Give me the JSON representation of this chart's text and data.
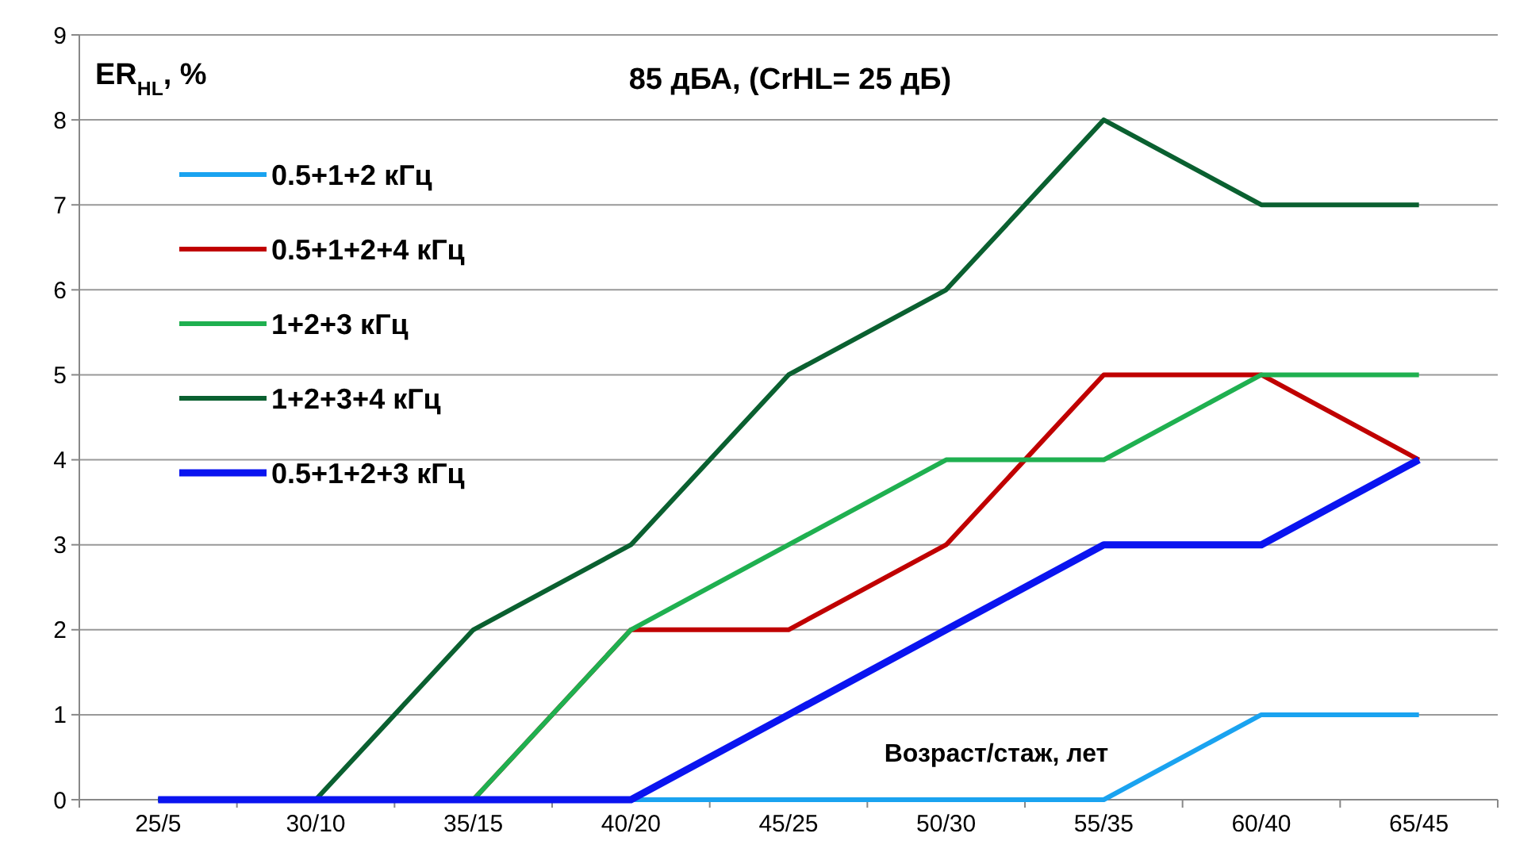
{
  "chart_data": {
    "type": "line",
    "title": "85 дБА,  (CrHL= 25 дБ)",
    "ylabel": "ER$_{HL}$, %",
    "xlabel": "Возраст/стаж, лет",
    "categories": [
      "25/5",
      "30/10",
      "35/15",
      "40/20",
      "45/25",
      "50/30",
      "55/35",
      "60/40",
      "65/45"
    ],
    "series": [
      {
        "name": "0.5+1+2 кГц",
        "color": "#1aa3f0",
        "values": [
          null,
          null,
          0,
          0,
          0,
          0,
          0,
          1,
          1
        ]
      },
      {
        "name": "0.5+1+2+4 кГц",
        "color": "#c00000",
        "values": [
          null,
          null,
          0,
          2,
          2,
          3,
          5,
          5,
          4
        ]
      },
      {
        "name": "1+2+3 кГц",
        "color": "#1fb050",
        "values": [
          0,
          0,
          0,
          2,
          3,
          4,
          4,
          5,
          5
        ]
      },
      {
        "name": "1+2+3+4 кГц",
        "color": "#0a6030",
        "values": [
          0,
          0,
          2,
          3,
          5,
          6,
          8,
          7,
          7
        ]
      },
      {
        "name": "0.5+1+2+3 кГц",
        "color": "#0a14f0",
        "values": [
          0,
          0,
          0,
          0,
          1,
          2,
          3,
          3,
          4
        ]
      }
    ],
    "ylim": [
      0,
      9
    ],
    "yticks": [
      0,
      1,
      2,
      3,
      4,
      5,
      6,
      7,
      8,
      9
    ],
    "grid": "y",
    "legend": "top left",
    "marker": "none",
    "line_style": "solid"
  }
}
